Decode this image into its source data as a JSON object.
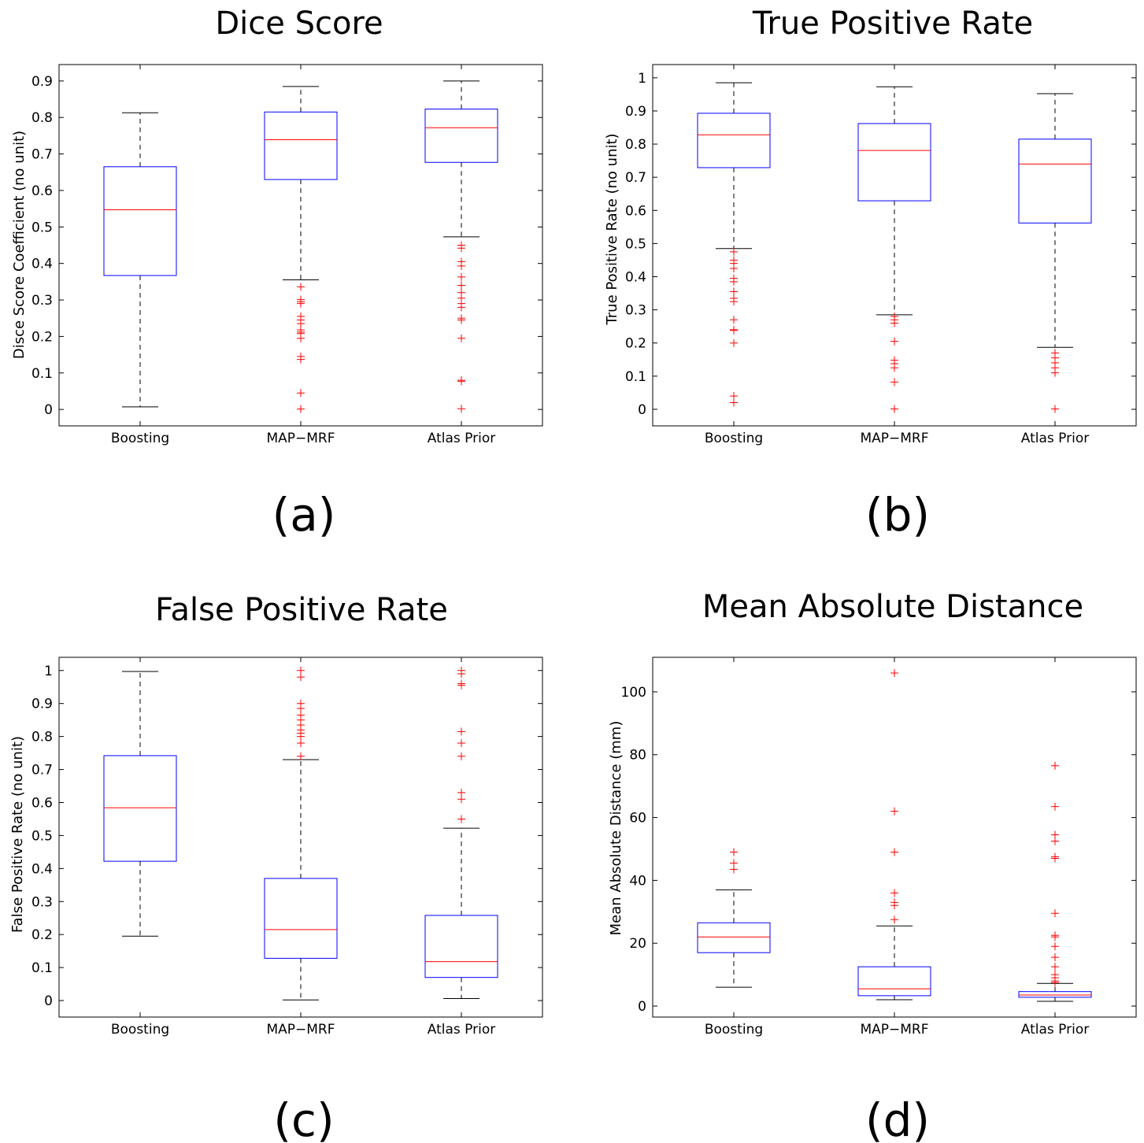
{
  "chart_data": [
    {
      "type": "boxplot",
      "title": "Dice Score",
      "panel_label": "(a)",
      "ylabel": "Disce Score Coefficient (no unit)",
      "categories": [
        "Boosting",
        "MAP−MRF",
        "Atlas Prior"
      ],
      "ylim": [
        -0.045,
        0.945
      ],
      "yticks": [
        0,
        0.1,
        0.2,
        0.3,
        0.4,
        0.5,
        0.6,
        0.7,
        0.8,
        0.9
      ],
      "boxes": [
        {
          "whisker_low": 0.007,
          "q1": 0.367,
          "median": 0.547,
          "q3": 0.665,
          "whisker_high": 0.813,
          "outliers": []
        },
        {
          "whisker_low": 0.355,
          "q1": 0.63,
          "median": 0.739,
          "q3": 0.815,
          "whisker_high": 0.885,
          "outliers": [
            0.336,
            0.301,
            0.295,
            0.29,
            0.255,
            0.245,
            0.235,
            0.218,
            0.212,
            0.208,
            0.195,
            0.145,
            0.137,
            0.045,
            0.001
          ]
        },
        {
          "whisker_low": 0.473,
          "q1": 0.677,
          "median": 0.772,
          "q3": 0.823,
          "whisker_high": 0.9,
          "outliers": [
            0.45,
            0.442,
            0.405,
            0.393,
            0.363,
            0.34,
            0.32,
            0.305,
            0.29,
            0.28,
            0.25,
            0.245,
            0.195,
            0.08,
            0.077,
            0.002
          ]
        }
      ],
      "colors": {
        "box": "#0000ff",
        "median": "#ff0000",
        "whisker": "#000000",
        "outlier": "#ff0000"
      }
    },
    {
      "type": "boxplot",
      "title": "True Positive Rate",
      "panel_label": "(b)",
      "ylabel": "True Positive Rate (no unit)",
      "categories": [
        "Boosting",
        "MAP−MRF",
        "Atlas Prior"
      ],
      "ylim": [
        -0.05,
        1.04
      ],
      "yticks": [
        0,
        0.1,
        0.2,
        0.3,
        0.4,
        0.5,
        0.6,
        0.7,
        0.8,
        0.9,
        1
      ],
      "boxes": [
        {
          "whisker_low": 0.485,
          "q1": 0.729,
          "median": 0.828,
          "q3": 0.893,
          "whisker_high": 0.985,
          "outliers": [
            0.475,
            0.45,
            0.44,
            0.425,
            0.395,
            0.385,
            0.355,
            0.335,
            0.325,
            0.27,
            0.24,
            0.238,
            0.2,
            0.04,
            0.02
          ]
        },
        {
          "whisker_low": 0.285,
          "q1": 0.629,
          "median": 0.781,
          "q3": 0.862,
          "whisker_high": 0.973,
          "outliers": [
            0.28,
            0.27,
            0.26,
            0.205,
            0.148,
            0.138,
            0.125,
            0.082,
            0.001
          ]
        },
        {
          "whisker_low": 0.187,
          "q1": 0.562,
          "median": 0.74,
          "q3": 0.815,
          "whisker_high": 0.952,
          "outliers": [
            0.17,
            0.155,
            0.14,
            0.125,
            0.11,
            0.001
          ]
        }
      ],
      "colors": {
        "box": "#0000ff",
        "median": "#ff0000",
        "whisker": "#000000",
        "outlier": "#ff0000"
      }
    },
    {
      "type": "boxplot",
      "title": "False Positive Rate",
      "panel_label": "(c)",
      "ylabel": "False Positive Rate (no unit)",
      "categories": [
        "Boosting",
        "MAP−MRF",
        "Atlas Prior"
      ],
      "ylim": [
        -0.05,
        1.04
      ],
      "yticks": [
        0,
        0.1,
        0.2,
        0.3,
        0.4,
        0.5,
        0.6,
        0.7,
        0.8,
        0.9,
        1
      ],
      "boxes": [
        {
          "whisker_low": 0.195,
          "q1": 0.422,
          "median": 0.584,
          "q3": 0.742,
          "whisker_high": 0.997,
          "outliers": []
        },
        {
          "whisker_low": 0.002,
          "q1": 0.128,
          "median": 0.215,
          "q3": 0.37,
          "whisker_high": 0.73,
          "outliers": [
            1.0,
            0.98,
            0.9,
            0.885,
            0.865,
            0.85,
            0.835,
            0.82,
            0.81,
            0.8,
            0.78,
            0.74
          ]
        },
        {
          "whisker_low": 0.006,
          "q1": 0.07,
          "median": 0.118,
          "q3": 0.258,
          "whisker_high": 0.522,
          "outliers": [
            1.0,
            0.99,
            0.96,
            0.955,
            0.815,
            0.78,
            0.74,
            0.63,
            0.61,
            0.55
          ]
        }
      ],
      "colors": {
        "box": "#0000ff",
        "median": "#ff0000",
        "whisker": "#000000",
        "outlier": "#ff0000"
      }
    },
    {
      "type": "boxplot",
      "title": "Mean Absolute Distance",
      "panel_label": "(d)",
      "ylabel": "Mean Absolute Distance (mm)",
      "categories": [
        "Boosting",
        "MAP−MRF",
        "Atlas Prior"
      ],
      "ylim": [
        -3.5,
        111
      ],
      "yticks": [
        0,
        20,
        40,
        60,
        80,
        100
      ],
      "boxes": [
        {
          "whisker_low": 6.0,
          "q1": 17.0,
          "median": 22.0,
          "q3": 26.5,
          "whisker_high": 37.0,
          "outliers": [
            49.0,
            45.5,
            43.5
          ]
        },
        {
          "whisker_low": 2.0,
          "q1": 3.3,
          "median": 5.5,
          "q3": 12.5,
          "whisker_high": 25.5,
          "outliers": [
            106.0,
            62.0,
            49.0,
            36.0,
            33.0,
            32.0,
            27.5
          ]
        },
        {
          "whisker_low": 1.5,
          "q1": 2.8,
          "median": 3.5,
          "q3": 4.6,
          "whisker_high": 7.2,
          "outliers": [
            76.5,
            63.5,
            54.5,
            52.5,
            47.5,
            47.0,
            29.5,
            22.5,
            22.0,
            19.0,
            15.5,
            12.5,
            10.0,
            9.0,
            8.0,
            7.5
          ]
        }
      ],
      "colors": {
        "box": "#0000ff",
        "median": "#ff0000",
        "whisker": "#000000",
        "outlier": "#ff0000"
      }
    }
  ]
}
